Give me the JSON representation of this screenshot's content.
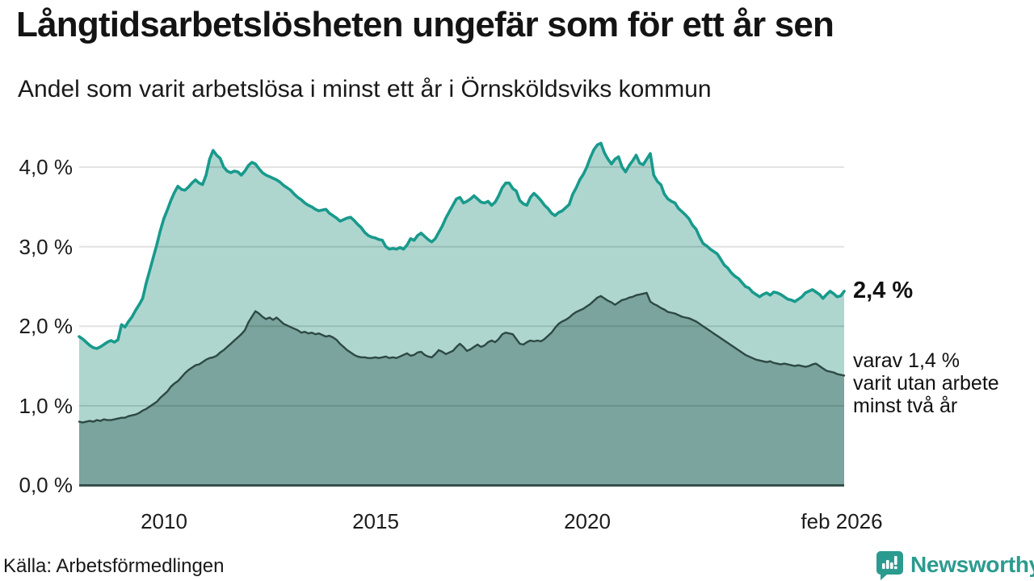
{
  "header": {
    "title": "Långtidsarbetslösheten ungefär som för ett år sen",
    "subtitle": "Andel som varit arbetslösa i minst ett år i Örnsköldsviks kommun"
  },
  "annotations": {
    "end_value_label": "2,4 %",
    "note_line1": "varav 1,4 %",
    "note_line2": "varit utan arbete",
    "note_line3": "minst två år"
  },
  "footer": {
    "source": "Källa: Arbetsförmedlingen",
    "brand": "Newsworthy",
    "brand_color": "#2b9b8f"
  },
  "chart_data": {
    "type": "area",
    "title": "Långtidsarbetslösheten ungefär som för ett år sen",
    "subtitle": "Andel som varit arbetslösa i minst ett år i Örnsköldsviks kommun",
    "unit": "%",
    "frequency": "monthly",
    "x_start": "2008-01",
    "x_end": "2026-02",
    "grid": true,
    "ylim": [
      0,
      4.4
    ],
    "gridline_values": [
      1,
      2,
      3,
      4
    ],
    "y_tick_labels": [
      "0,0 %",
      "1,0 %",
      "2,0 %",
      "3,0 %",
      "4,0 %"
    ],
    "x_tick_labels": [
      "2010",
      "2015",
      "2020",
      "feb 2026"
    ],
    "x_tick_month_offsets": [
      24,
      84,
      144,
      217
    ],
    "colors": {
      "line_upper": "#189a8c",
      "fill_upper": "#aed6cf",
      "line_lower": "#2e4944",
      "fill_lower": "#7aa49d",
      "gridline": "#e2e2e2",
      "axis": "#36504a"
    },
    "series": [
      {
        "name": "Andel arbetslösa minst ett år",
        "end_value": 2.4,
        "values": [
          1.87,
          1.84,
          1.8,
          1.76,
          1.73,
          1.72,
          1.74,
          1.77,
          1.8,
          1.82,
          1.8,
          1.83,
          2.02,
          1.99,
          2.06,
          2.12,
          2.2,
          2.27,
          2.35,
          2.54,
          2.7,
          2.86,
          3.02,
          3.2,
          3.35,
          3.46,
          3.58,
          3.68,
          3.76,
          3.72,
          3.71,
          3.75,
          3.8,
          3.84,
          3.8,
          3.78,
          3.9,
          4.1,
          4.21,
          4.15,
          4.11,
          4.0,
          3.95,
          3.93,
          3.95,
          3.94,
          3.9,
          3.95,
          4.02,
          4.06,
          4.04,
          3.98,
          3.93,
          3.9,
          3.88,
          3.86,
          3.84,
          3.81,
          3.77,
          3.74,
          3.71,
          3.66,
          3.62,
          3.59,
          3.55,
          3.52,
          3.5,
          3.47,
          3.45,
          3.46,
          3.47,
          3.42,
          3.39,
          3.36,
          3.32,
          3.34,
          3.36,
          3.37,
          3.33,
          3.28,
          3.24,
          3.18,
          3.14,
          3.12,
          3.11,
          3.09,
          3.08,
          3.0,
          2.97,
          2.98,
          2.97,
          2.99,
          2.97,
          3.02,
          3.1,
          3.08,
          3.14,
          3.17,
          3.13,
          3.09,
          3.06,
          3.1,
          3.18,
          3.26,
          3.36,
          3.44,
          3.52,
          3.6,
          3.62,
          3.55,
          3.57,
          3.6,
          3.64,
          3.6,
          3.56,
          3.55,
          3.57,
          3.52,
          3.56,
          3.64,
          3.74,
          3.8,
          3.8,
          3.73,
          3.7,
          3.58,
          3.54,
          3.52,
          3.62,
          3.67,
          3.63,
          3.58,
          3.52,
          3.48,
          3.42,
          3.39,
          3.43,
          3.45,
          3.49,
          3.53,
          3.66,
          3.74,
          3.84,
          3.91,
          4.0,
          4.12,
          4.22,
          4.28,
          4.3,
          4.18,
          4.1,
          4.04,
          4.1,
          4.13,
          4.0,
          3.94,
          4.02,
          4.08,
          4.15,
          4.05,
          4.03,
          4.1,
          4.17,
          3.9,
          3.82,
          3.78,
          3.66,
          3.6,
          3.57,
          3.55,
          3.48,
          3.44,
          3.4,
          3.35,
          3.27,
          3.22,
          3.12,
          3.04,
          3.01,
          2.97,
          2.94,
          2.91,
          2.84,
          2.77,
          2.73,
          2.67,
          2.63,
          2.6,
          2.55,
          2.5,
          2.48,
          2.43,
          2.4,
          2.37,
          2.4,
          2.42,
          2.39,
          2.43,
          2.42,
          2.4,
          2.37,
          2.34,
          2.33,
          2.31,
          2.34,
          2.37,
          2.42,
          2.44,
          2.46,
          2.43,
          2.4,
          2.35,
          2.4,
          2.44,
          2.41,
          2.37,
          2.38,
          2.44
        ]
      },
      {
        "name": "varav utan arbete minst två år",
        "end_value": 1.4,
        "values": [
          0.8,
          0.79,
          0.8,
          0.81,
          0.8,
          0.82,
          0.81,
          0.83,
          0.82,
          0.82,
          0.83,
          0.84,
          0.85,
          0.85,
          0.87,
          0.88,
          0.89,
          0.91,
          0.94,
          0.96,
          0.99,
          1.02,
          1.05,
          1.1,
          1.14,
          1.18,
          1.24,
          1.28,
          1.31,
          1.36,
          1.41,
          1.45,
          1.48,
          1.51,
          1.52,
          1.55,
          1.58,
          1.6,
          1.61,
          1.63,
          1.67,
          1.7,
          1.74,
          1.78,
          1.82,
          1.86,
          1.9,
          1.95,
          2.05,
          2.12,
          2.19,
          2.16,
          2.12,
          2.09,
          2.11,
          2.08,
          2.11,
          2.07,
          2.03,
          2.01,
          1.99,
          1.97,
          1.95,
          1.92,
          1.93,
          1.91,
          1.92,
          1.9,
          1.91,
          1.89,
          1.87,
          1.88,
          1.86,
          1.83,
          1.78,
          1.74,
          1.7,
          1.67,
          1.64,
          1.62,
          1.61,
          1.61,
          1.6,
          1.6,
          1.61,
          1.6,
          1.61,
          1.62,
          1.6,
          1.61,
          1.6,
          1.62,
          1.64,
          1.66,
          1.63,
          1.64,
          1.67,
          1.68,
          1.64,
          1.62,
          1.61,
          1.65,
          1.7,
          1.68,
          1.65,
          1.67,
          1.69,
          1.74,
          1.78,
          1.74,
          1.69,
          1.71,
          1.74,
          1.77,
          1.74,
          1.76,
          1.8,
          1.82,
          1.8,
          1.84,
          1.9,
          1.92,
          1.91,
          1.9,
          1.84,
          1.78,
          1.77,
          1.8,
          1.82,
          1.81,
          1.82,
          1.81,
          1.84,
          1.88,
          1.92,
          1.98,
          2.03,
          2.06,
          2.08,
          2.11,
          2.15,
          2.18,
          2.2,
          2.22,
          2.25,
          2.28,
          2.32,
          2.36,
          2.38,
          2.35,
          2.32,
          2.3,
          2.27,
          2.3,
          2.33,
          2.34,
          2.36,
          2.37,
          2.39,
          2.4,
          2.41,
          2.42,
          2.31,
          2.28,
          2.26,
          2.23,
          2.21,
          2.18,
          2.17,
          2.16,
          2.14,
          2.12,
          2.11,
          2.1,
          2.08,
          2.06,
          2.03,
          2.0,
          1.97,
          1.94,
          1.91,
          1.88,
          1.85,
          1.82,
          1.79,
          1.76,
          1.73,
          1.7,
          1.67,
          1.64,
          1.62,
          1.6,
          1.58,
          1.57,
          1.56,
          1.55,
          1.56,
          1.54,
          1.53,
          1.52,
          1.53,
          1.52,
          1.51,
          1.5,
          1.51,
          1.5,
          1.49,
          1.5,
          1.52,
          1.53,
          1.5,
          1.47,
          1.44,
          1.43,
          1.42,
          1.4,
          1.39,
          1.38
        ]
      }
    ]
  }
}
